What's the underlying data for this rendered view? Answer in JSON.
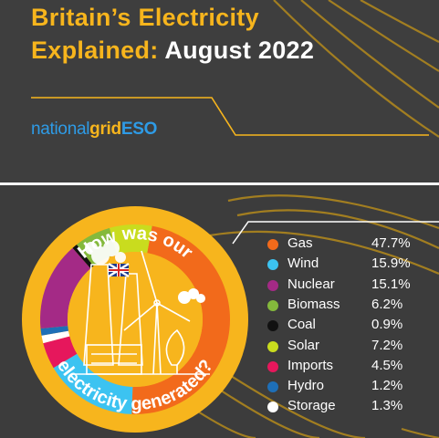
{
  "header": {
    "title_line1": "Britain’s Electricity",
    "title_line2_a": "Explained:",
    "title_line2_b": "August 2022"
  },
  "logo": {
    "part1": "national",
    "part2": "grid",
    "part3": "ESO"
  },
  "question": {
    "top": "How was our",
    "bottom": "electricity generated?"
  },
  "colors": {
    "brand_yellow": "#f7b51d",
    "background": "#3c3c3c",
    "logo_blue": "#2e9be6"
  },
  "chart_data": {
    "type": "pie",
    "categories": [
      "Gas",
      "Wind",
      "Nuclear",
      "Biomass",
      "Coal",
      "Solar",
      "Imports",
      "Hydro",
      "Storage"
    ],
    "values": [
      47.7,
      15.9,
      15.1,
      6.2,
      0.9,
      7.2,
      4.5,
      1.2,
      1.3
    ],
    "value_labels": [
      "47.7%",
      "15.9%",
      "15.1%",
      "6.2%",
      "0.9%",
      "7.2%",
      "4.5%",
      "1.2%",
      "1.3%"
    ],
    "colors": [
      "#f26a1b",
      "#3cc3f1",
      "#a42a86",
      "#84b93c",
      "#111111",
      "#c9dc1e",
      "#e6175c",
      "#1e6fb7",
      "#ffffff"
    ],
    "legend_position": "right",
    "style": "donut ring"
  }
}
